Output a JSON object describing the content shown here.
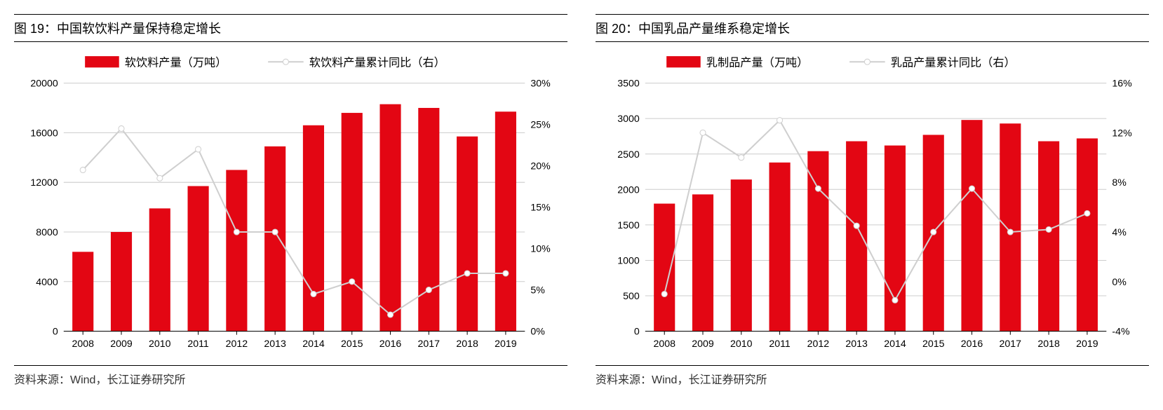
{
  "panels": [
    {
      "id": "fig19",
      "title": "图 19：中国软饮料产量保持稳定增长",
      "source": "资料来源：Wind，长江证券研究所",
      "type": "bar+line",
      "categories": [
        "2008",
        "2009",
        "2010",
        "2011",
        "2012",
        "2013",
        "2014",
        "2015",
        "2016",
        "2017",
        "2018",
        "2019"
      ],
      "bar_series": {
        "label": "软饮料产量（万吨）",
        "values": [
          6400,
          8000,
          9900,
          11700,
          13000,
          14900,
          16600,
          17600,
          18300,
          18000,
          15700,
          17700
        ],
        "color": "#e30613"
      },
      "line_series": {
        "label": "软饮料产量累计同比（右）",
        "values": [
          19.5,
          24.5,
          18.5,
          22,
          12,
          12,
          4.5,
          6,
          2,
          5,
          7,
          7
        ],
        "color": "#cfcfcf",
        "marker_color": "#cfcfcf",
        "marker_size": 4
      },
      "y_left": {
        "min": 0,
        "max": 20000,
        "step": 4000,
        "suffix": ""
      },
      "y_right": {
        "min": 0,
        "max": 30,
        "step": 5,
        "suffix": "%"
      },
      "grid_color": "#cccccc",
      "background_color": "#ffffff",
      "bar_width": 0.55,
      "tick_fontsize": 14,
      "legend_fontsize": 16
    },
    {
      "id": "fig20",
      "title": "图 20：中国乳品产量维系稳定增长",
      "source": "资料来源：Wind，长江证券研究所",
      "type": "bar+line",
      "categories": [
        "2008",
        "2009",
        "2010",
        "2011",
        "2012",
        "2013",
        "2014",
        "2015",
        "2016",
        "2017",
        "2018",
        "2019"
      ],
      "bar_series": {
        "label": "乳制品产量（万吨）",
        "values": [
          1800,
          1930,
          2140,
          2380,
          2540,
          2680,
          2620,
          2770,
          2980,
          2930,
          2680,
          2720
        ],
        "color": "#e30613"
      },
      "line_series": {
        "label": "乳品产量累计同比（右）",
        "values": [
          -1,
          12,
          10,
          13,
          7.5,
          4.5,
          -1.5,
          4,
          7.5,
          4,
          4.2,
          5.5
        ],
        "color": "#cfcfcf",
        "marker_color": "#cfcfcf",
        "marker_size": 4
      },
      "y_left": {
        "min": 0,
        "max": 3500,
        "step": 500,
        "suffix": ""
      },
      "y_right": {
        "min": -4,
        "max": 16,
        "step": 4,
        "suffix": "%"
      },
      "grid_color": "#cccccc",
      "background_color": "#ffffff",
      "bar_width": 0.55,
      "tick_fontsize": 14,
      "legend_fontsize": 16
    }
  ]
}
